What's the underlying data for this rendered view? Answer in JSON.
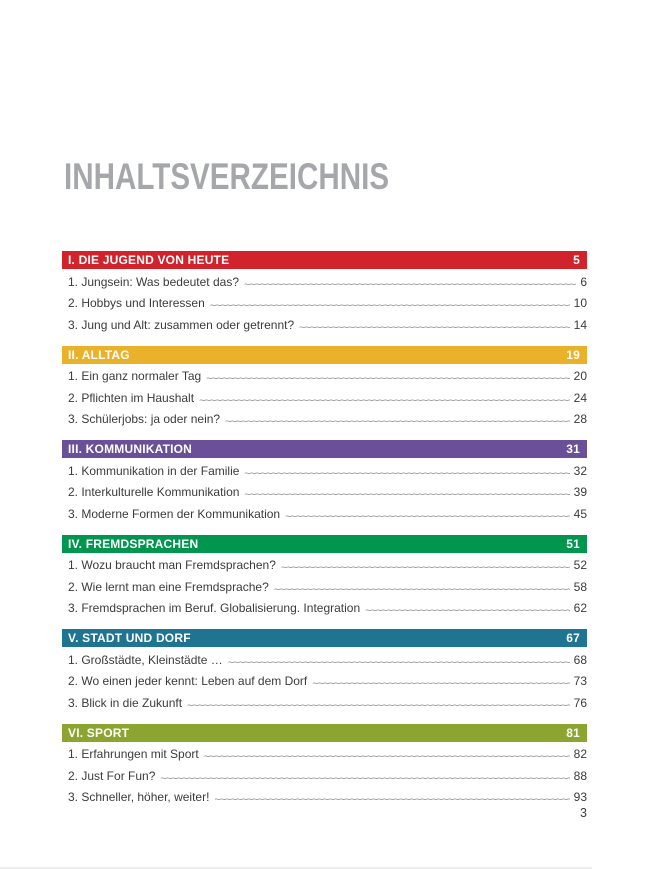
{
  "page": {
    "title": "INHALTSVERZEICHNIS",
    "folio": "3"
  },
  "colors": {
    "title_gray": "#a5a7aa",
    "body_text": "#3b3b3c",
    "leader_gray": "#8d8d8d",
    "section_red": "#d0232b",
    "section_gold": "#e9b22a",
    "section_purple": "#6a4f99",
    "section_green": "#009650",
    "section_teal": "#1f7492",
    "section_olive": "#8ca430"
  },
  "sections": [
    {
      "label": "I. DIE JUGEND VON HEUTE",
      "page": "5",
      "color": "#d0232b",
      "items": [
        {
          "label": "1. Jungsein: Was bedeutet das?",
          "page": "6"
        },
        {
          "label": "2. Hobbys und Interessen",
          "page": "10"
        },
        {
          "label": "3. Jung und Alt: zusammen oder getrennt?",
          "page": "14"
        }
      ]
    },
    {
      "label": "II. ALLTAG",
      "page": "19",
      "color": "#e9b22a",
      "items": [
        {
          "label": "1. Ein ganz normaler Tag",
          "page": "20"
        },
        {
          "label": "2. Pflichten im Haushalt",
          "page": "24"
        },
        {
          "label": "3. Schülerjobs: ja oder nein?",
          "page": "28"
        }
      ]
    },
    {
      "label": "III. KOMMUNIKATION",
      "page": "31",
      "color": "#6a4f99",
      "items": [
        {
          "label": "1. Kommunikation in der Familie",
          "page": "32"
        },
        {
          "label": "2. Interkulturelle Kommunikation",
          "page": "39"
        },
        {
          "label": "3. Moderne Formen der Kommunikation",
          "page": "45"
        }
      ]
    },
    {
      "label": "IV. FREMDSPRACHEN",
      "page": "51",
      "color": "#009650",
      "items": [
        {
          "label": "1. Wozu braucht man Fremdsprachen?",
          "page": "52"
        },
        {
          "label": "2. Wie lernt man eine Fremdsprache?",
          "page": "58"
        },
        {
          "label": "3. Fremdsprachen im Beruf. Globalisierung. Integration",
          "page": "62"
        }
      ]
    },
    {
      "label": "V. STADT UND DORF",
      "page": "67",
      "color": "#1f7492",
      "items": [
        {
          "label": "1. Großstädte, Kleinstädte …",
          "page": "68"
        },
        {
          "label": "2. Wo einen jeder kennt: Leben auf dem Dorf",
          "page": "73"
        },
        {
          "label": "3. Blick in die Zukunft",
          "page": "76"
        }
      ]
    },
    {
      "label": "VI. SPORT",
      "page": "81",
      "color": "#8ca430",
      "items": [
        {
          "label": "1. Erfahrungen mit Sport",
          "page": "82"
        },
        {
          "label": "2. Just For Fun?",
          "page": "88"
        },
        {
          "label": "3. Schneller, höher, weiter!",
          "page": "93"
        }
      ]
    }
  ]
}
